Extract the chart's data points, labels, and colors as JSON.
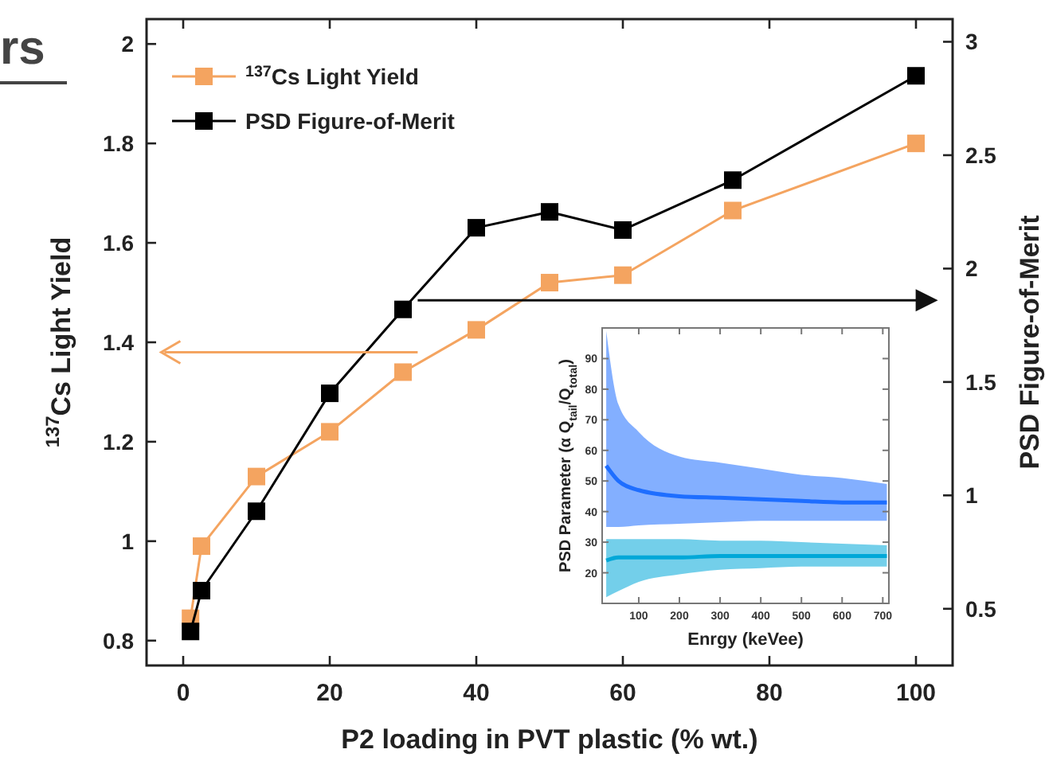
{
  "chart_data": [
    {
      "type": "line",
      "xlabel": "P2 loading in PVT plastic (% wt.)",
      "ylabel": "$^{137}$Cs Light Yield",
      "y2label": "PSD Figure-of-Merit",
      "x": [
        1,
        2.5,
        10,
        20,
        30,
        40,
        50,
        60,
        75,
        100
      ],
      "xlim": [
        -5,
        105
      ],
      "xticks": [
        0,
        20,
        40,
        60,
        80,
        100
      ],
      "ylim": [
        0.75,
        2.05
      ],
      "yticks": [
        0.8,
        1,
        1.2,
        1.4,
        1.6,
        1.8,
        2
      ],
      "y2lim": [
        0.25,
        3.1
      ],
      "y2ticks": [
        0.5,
        1,
        1.5,
        2,
        2.5,
        3
      ],
      "marker": "square",
      "legend": "top left",
      "annotations": [
        "rs"
      ],
      "series": [
        {
          "name": "$^{137}$Cs Light Yield",
          "color": "#f4a460",
          "values": [
            0.845,
            0.99,
            1.13,
            1.22,
            1.34,
            1.425,
            1.52,
            1.535,
            1.665,
            1.8
          ]
        },
        {
          "name": "PSD Figure-of-Merit",
          "color": "#000000",
          "axis": "y2",
          "values": [
            0.4,
            0.58,
            0.93,
            1.45,
            1.82,
            2.18,
            2.25,
            2.17,
            2.39,
            2.85
          ]
        }
      ]
    },
    {
      "type": "line",
      "xlabel": "Enrgy (keVee)",
      "ylabel": "PSD Parameter (α Q$_{tail}$/Q$_{total}$)",
      "xlim": [
        10,
        715
      ],
      "xticks": [
        100,
        200,
        300,
        400,
        500,
        600,
        700
      ],
      "ylim": [
        10,
        100
      ],
      "yticks": [
        20,
        30,
        40,
        50,
        60,
        70,
        80,
        90
      ],
      "x": [
        20,
        50,
        100,
        200,
        300,
        400,
        500,
        600,
        710
      ],
      "series": [
        {
          "color": "#1e6eff",
          "values": [
            55,
            50,
            47,
            45,
            44.5,
            44,
            43.5,
            43,
            43
          ],
          "lower": [
            35,
            35,
            35.5,
            36,
            36.5,
            37,
            37,
            37,
            37
          ],
          "upper": [
            99,
            75,
            66,
            58,
            56,
            54,
            52,
            51,
            49
          ]
        },
        {
          "color": "#00a8d8",
          "values": [
            24,
            25,
            25,
            25,
            25.5,
            25.5,
            25.5,
            25.5,
            25.5
          ],
          "lower": [
            12,
            14,
            17,
            19.5,
            21,
            21.5,
            22,
            22,
            22
          ],
          "upper": [
            31,
            31,
            31,
            31,
            30.5,
            30.5,
            30,
            29.5,
            29
          ]
        }
      ]
    }
  ]
}
